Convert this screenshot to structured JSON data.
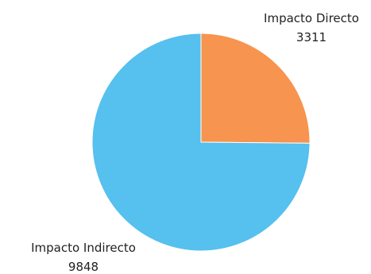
{
  "chart_data": {
    "type": "pie",
    "title": "",
    "start_angle_deg": 0,
    "direction": "clockwise",
    "slices": [
      {
        "label": "Impacto Directo",
        "value": 3311,
        "value_text": "3311",
        "color": "#f7944f"
      },
      {
        "label": "Impacto Indirecto",
        "value": 9848,
        "value_text": "9848",
        "color": "#56c0ee"
      }
    ]
  },
  "background_color": "#ffffff"
}
